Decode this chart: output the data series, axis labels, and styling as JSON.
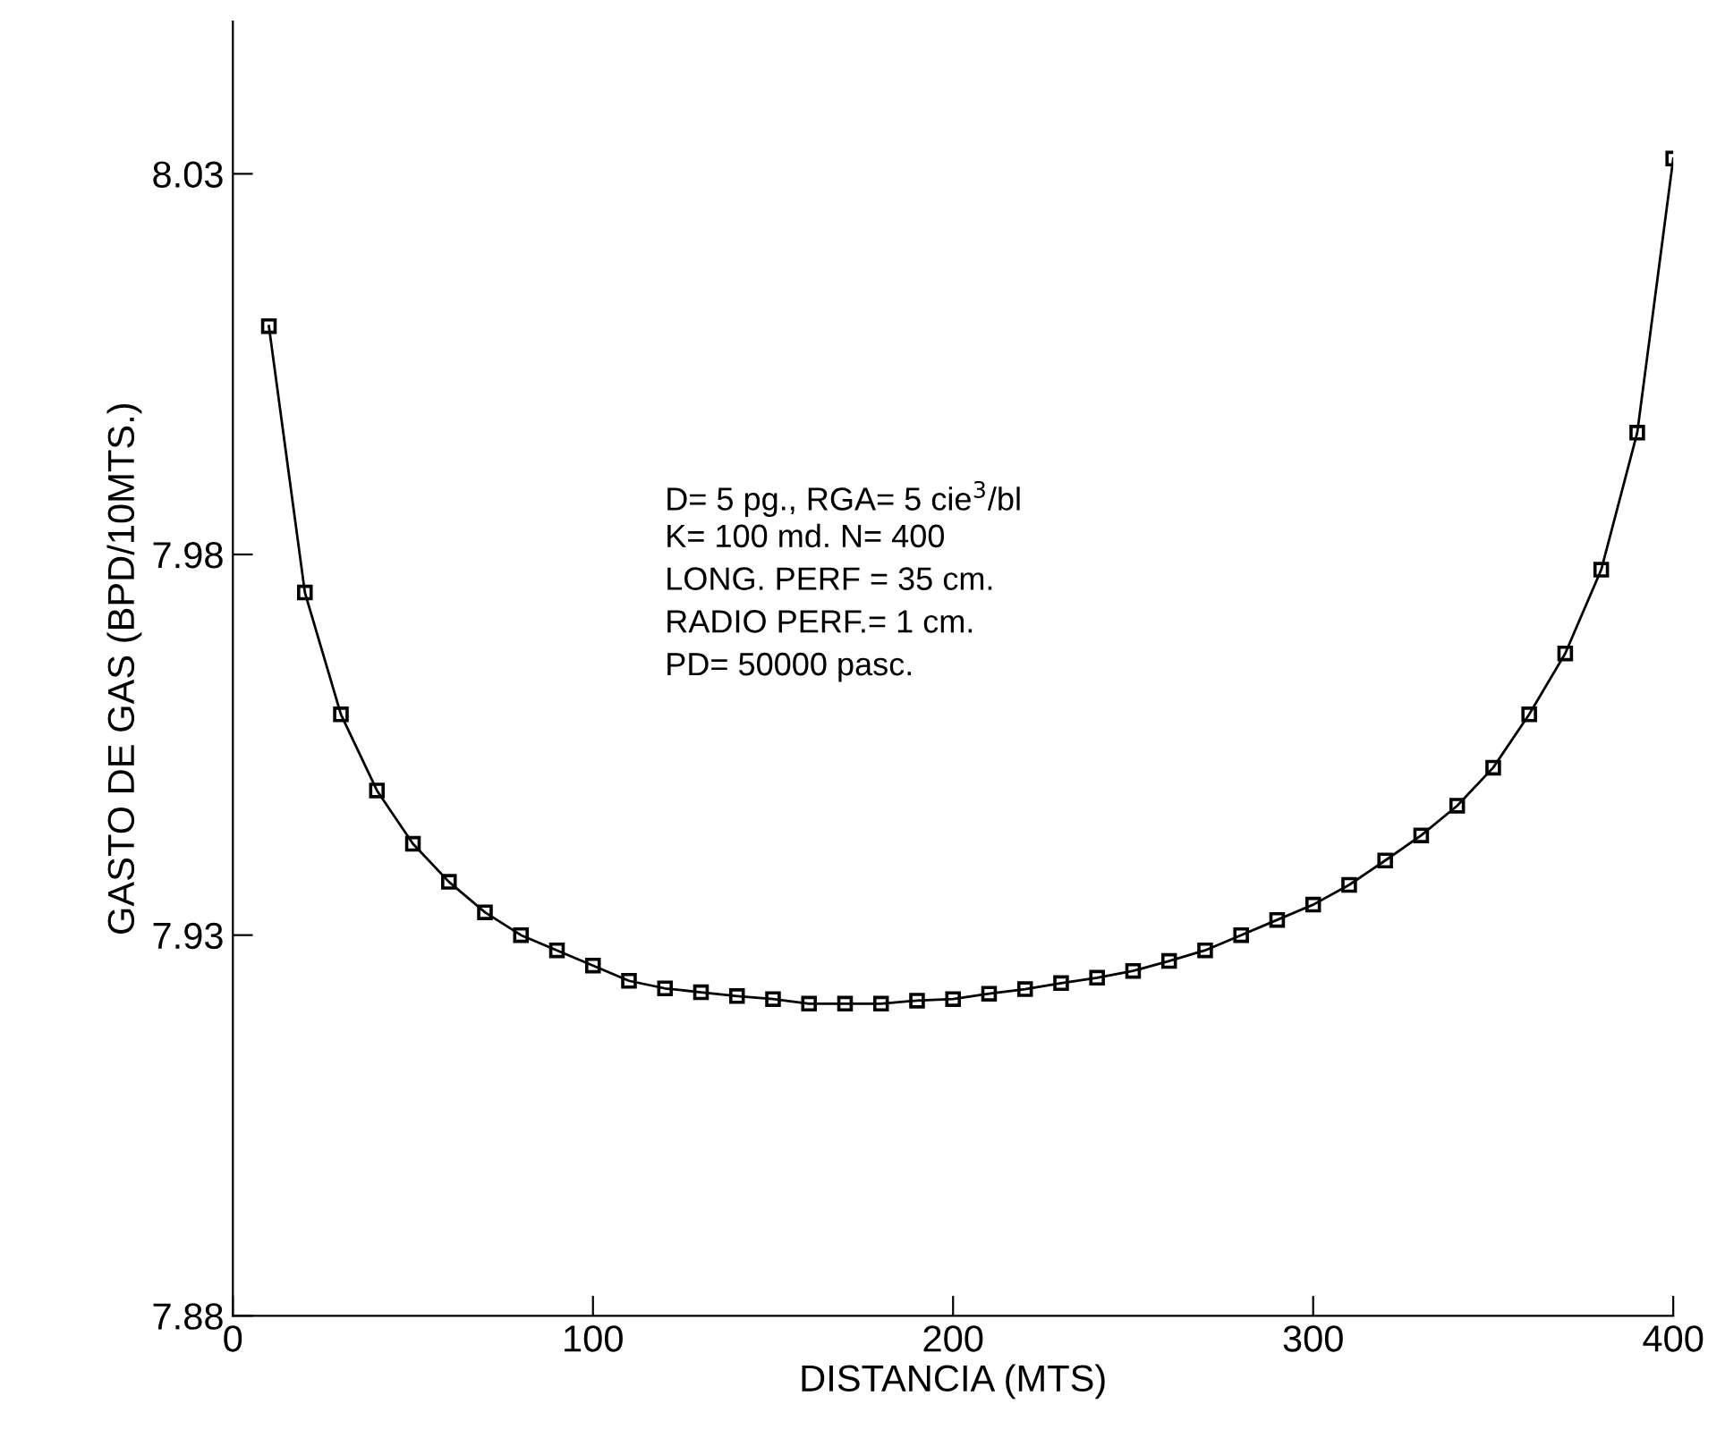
{
  "chart_data": {
    "type": "line",
    "xlabel": "DISTANCIA (MTS)",
    "ylabel": "GASTO DE GAS (BPD/10MTS.)",
    "x": [
      10,
      20,
      30,
      40,
      50,
      60,
      70,
      80,
      90,
      100,
      110,
      120,
      130,
      140,
      150,
      160,
      170,
      180,
      190,
      200,
      210,
      220,
      230,
      240,
      250,
      260,
      270,
      280,
      290,
      300,
      310,
      320,
      330,
      340,
      350,
      360,
      370,
      380,
      390,
      400
    ],
    "series": [
      {
        "color": "#000000",
        "values": [
          8.01,
          7.975,
          7.959,
          7.949,
          7.942,
          7.937,
          7.933,
          7.93,
          7.928,
          7.926,
          7.924,
          7.923,
          7.9225,
          7.922,
          7.9216,
          7.921,
          7.921,
          7.921,
          7.9214,
          7.9216,
          7.9223,
          7.9229,
          7.9237,
          7.9244,
          7.9253,
          7.9266,
          7.928,
          7.93,
          7.932,
          7.934,
          7.9366,
          7.9398,
          7.9431,
          7.947,
          7.952,
          7.959,
          7.967,
          7.978,
          7.996,
          8.032
        ]
      }
    ],
    "xlim": [
      0,
      400
    ],
    "ylim": [
      7.88,
      8.05
    ],
    "xticks": [
      0,
      100,
      200,
      300,
      400
    ],
    "yticks": [
      7.88,
      7.93,
      7.98,
      8.03
    ],
    "marker": "square",
    "line_style": "solid",
    "grid": false,
    "legend": false,
    "annotations": [
      "D= 5 pg., RGA= 5 cie$^{3}$/bl",
      "K= 100 md. N= 400",
      "LONG. PERF = 35 cm.",
      "RADIO PERF.= 1 cm.",
      "PD= 50000 pasc."
    ]
  }
}
